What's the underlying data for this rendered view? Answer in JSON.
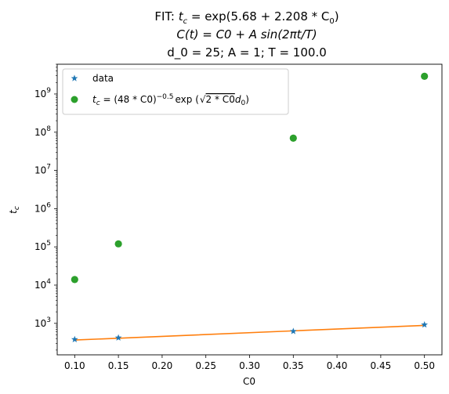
{
  "chart_data": {
    "type": "scatter",
    "title_lines": [
      "FIT: tₙ = exp(5.68 + 2.208 * C₀)",
      "C(t) = C0 + A sin(2πt/T)",
      "d_0 = 25; A = 1; T = 100.0"
    ],
    "title_line1_prefix": "FIT: ",
    "title_line1_t": "t",
    "title_line1_t_sub": "c",
    "title_line1_rest": " = exp(5.68 + 2.208 * C",
    "title_line1_c_sub": "0",
    "title_line1_close": ")",
    "title_line2": "C(t) = C0 + A sin(2πt/T)",
    "title_line3": "d_0 = 25; A = 1; T = 100.0",
    "xlabel": "C0",
    "ylabel_main": "t",
    "ylabel_sub": "c",
    "xlim": [
      0.08,
      0.52
    ],
    "ylim": [
      150,
      6000000000
    ],
    "yscale": "log",
    "x_ticks": [
      0.1,
      0.15,
      0.2,
      0.25,
      0.3,
      0.35,
      0.4,
      0.45,
      0.5
    ],
    "x_tick_labels": [
      "0.10",
      "0.15",
      "0.20",
      "0.25",
      "0.30",
      "0.35",
      "0.40",
      "0.45",
      "0.50"
    ],
    "y_ticks": [
      1000,
      10000,
      100000,
      1000000,
      10000000,
      100000000,
      1000000000
    ],
    "y_tick_exponents": [
      "3",
      "4",
      "5",
      "6",
      "7",
      "8",
      "9"
    ],
    "y_tick_base": "10",
    "legend_position": "upper-left",
    "series": [
      {
        "name": "data",
        "marker": "star",
        "color": "#1f77b4",
        "x": [
          0.1,
          0.15,
          0.35,
          0.5
        ],
        "y": [
          380,
          420,
          620,
          920
        ]
      },
      {
        "name": "fit",
        "marker": "line",
        "color": "#ff7f0e",
        "x": [
          0.1,
          0.15,
          0.35,
          0.5
        ],
        "y": [
          366,
          408,
          636,
          884
        ]
      },
      {
        "name": "t_c = (48*C0)^-0.5 exp(sqrt(2*C0) d_0)",
        "marker": "circle",
        "color": "#2ca02c",
        "x": [
          0.1,
          0.15,
          0.35,
          0.5
        ],
        "y": [
          14000,
          120000,
          70000000,
          2900000000
        ]
      }
    ],
    "legend": {
      "data_label": "data",
      "formula_t": "t",
      "formula_t_sub": "c",
      "formula_mid": " = (48 * C0)",
      "formula_exp": "−0.5",
      "formula_exp_word": "exp (",
      "formula_sqrt_inner": "2 * C0",
      "formula_d": "d",
      "formula_d_sub": "0",
      "formula_close": ")"
    }
  }
}
